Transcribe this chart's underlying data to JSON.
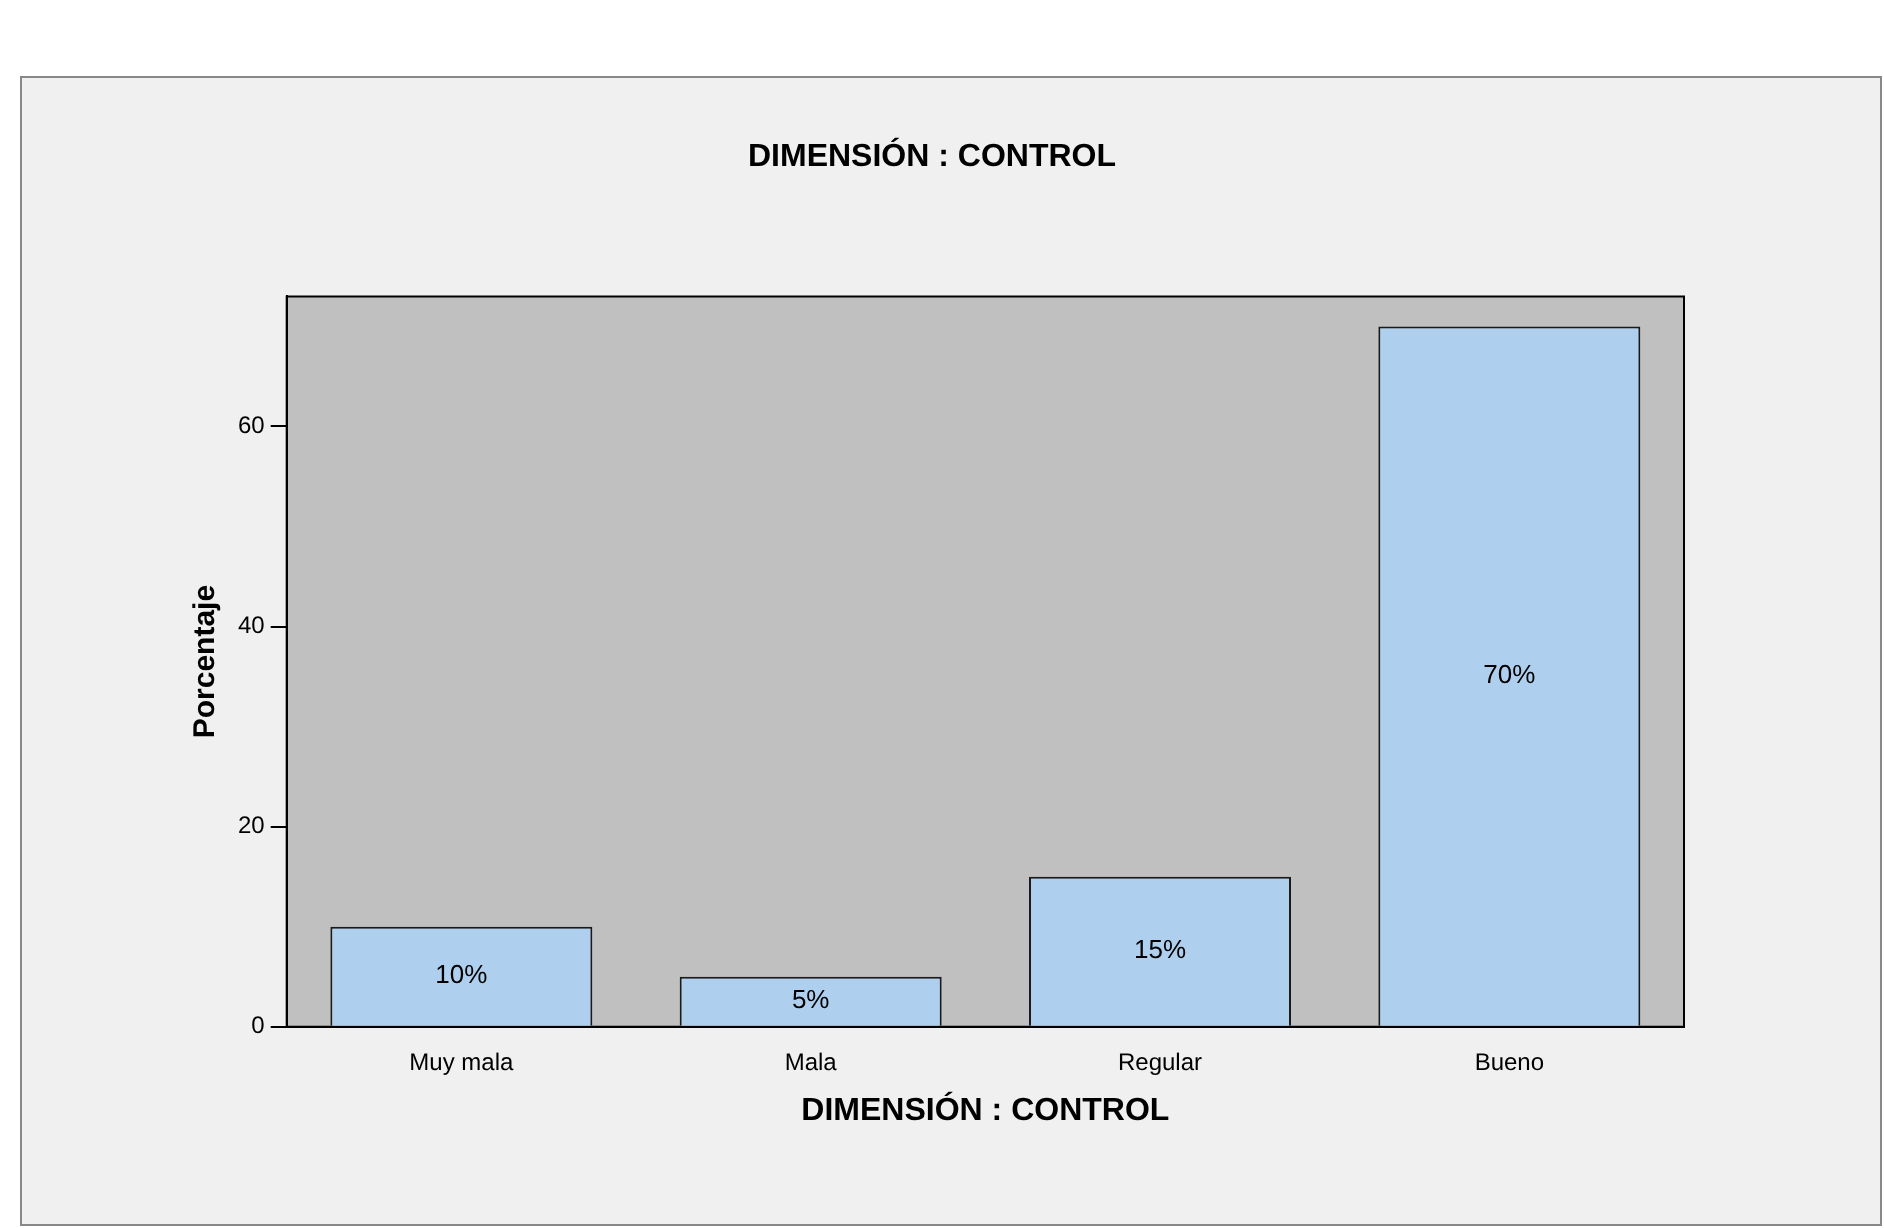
{
  "chart_data": {
    "type": "bar",
    "title": "DIMENSIÓN : CONTROL",
    "xlabel": "DIMENSIÓN : CONTROL",
    "ylabel": "Porcentaje",
    "categories": [
      "Muy mala",
      "Mala",
      "Regular",
      "Bueno"
    ],
    "values": [
      10,
      5,
      15,
      70
    ],
    "color": "#aed0ee",
    "value_labels": [
      "10%",
      "5%",
      "15%",
      "70%"
    ],
    "ylim": [
      0,
      73
    ],
    "yticks": [
      0,
      20,
      40,
      60
    ],
    "grid": false,
    "legend": false
  }
}
